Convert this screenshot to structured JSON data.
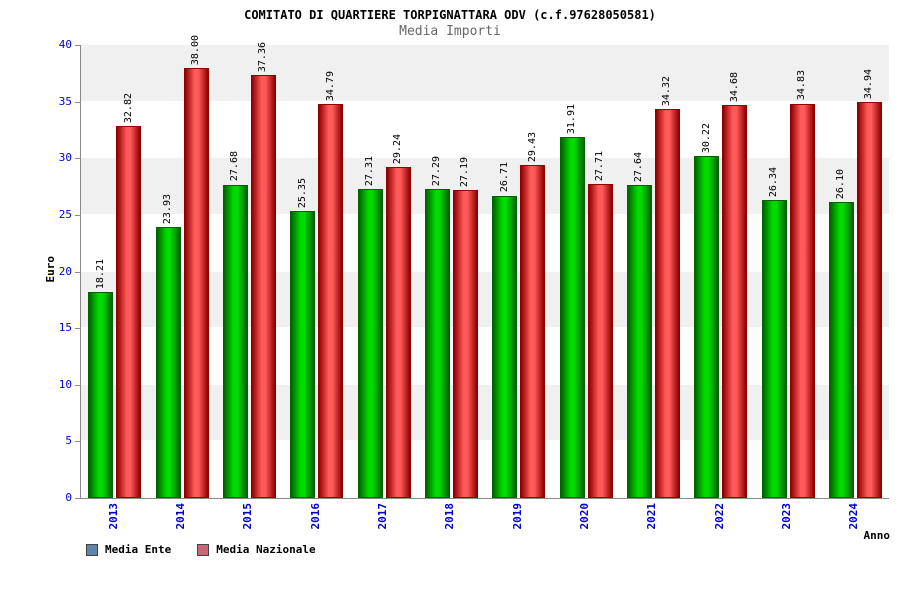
{
  "title": "COMITATO DI QUARTIERE TORPIGNATTARA ODV (c.f.97628050581)",
  "subtitle": "Media Importi",
  "chart_data": {
    "type": "bar",
    "title": "COMITATO DI QUARTIERE TORPIGNATTARA ODV (c.f.97628050581)",
    "subtitle": "Media Importi",
    "categories": [
      "2013",
      "2014",
      "2015",
      "2016",
      "2017",
      "2018",
      "2019",
      "2020",
      "2021",
      "2022",
      "2023",
      "2024"
    ],
    "series": [
      {
        "name": "Media Ente",
        "legend_color": "#5C85AD",
        "bar_edge": "#006300",
        "bar_center": "#00DC00",
        "values": [
          18.21,
          23.93,
          27.68,
          25.35,
          27.31,
          27.29,
          26.71,
          31.91,
          27.64,
          30.22,
          26.34,
          26.1
        ]
      },
      {
        "name": "Media Nazionale",
        "legend_color": "#CC6677",
        "bar_edge": "#8F0000",
        "bar_center": "#FF5A5A",
        "values": [
          32.82,
          38.0,
          37.36,
          34.79,
          29.24,
          27.19,
          29.43,
          27.71,
          34.32,
          34.68,
          34.83,
          34.94
        ]
      }
    ],
    "xlabel": "Anno",
    "ylabel": "Euro",
    "ylim": [
      0,
      40
    ],
    "ytick_step": 5,
    "yticks": [
      0,
      5,
      10,
      15,
      20,
      25,
      30,
      35,
      40
    ],
    "legend_position": "bottom",
    "grid": "horizontal-bands",
    "value_label_decimals": 2
  },
  "colors": {
    "band_gray": "#f0f0f0",
    "band_white": "#ffffff",
    "tick_label_blue": "#0000cc",
    "axis_line": "#8a8a8a",
    "subtitle_gray": "#666666"
  }
}
